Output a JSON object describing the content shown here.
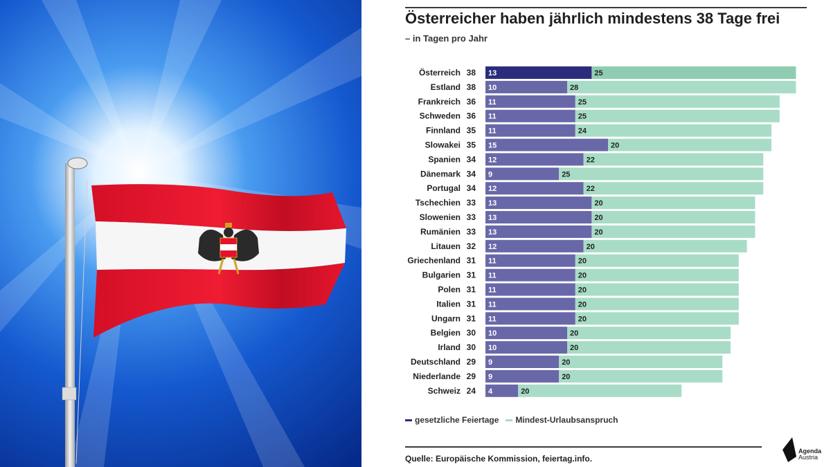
{
  "header": {
    "title": "Österreicher haben jährlich mindestens 38 Tage frei",
    "subtitle": "– in Tagen pro Jahr"
  },
  "legend": [
    {
      "label": "gesetzliche Feiertage",
      "color": "#2b2d7c"
    },
    {
      "label": "Mindest-Urlaubsanspruch",
      "color": "#a5dcc6"
    }
  ],
  "footer": {
    "source": "Quelle: Europäische Kommission, feiertag.info.",
    "logo_line1": "Agenda",
    "logo_line2": "Austria"
  },
  "colors": {
    "holidays_highlight": "#2b2d7c",
    "holidays": "#6868a8",
    "leave_highlight": "#8fcdb2",
    "leave": "#a8dcc6",
    "sky_center": "#dff0ff",
    "sky_edge": "#0a3ea8",
    "flag_red": "#e8112d"
  },
  "chart_data": {
    "type": "bar",
    "orientation": "horizontal",
    "stacked": true,
    "categories": [
      "Österreich",
      "Estland",
      "Frankreich",
      "Schweden",
      "Finnland",
      "Slowakei",
      "Spanien",
      "Dänemark",
      "Portugal",
      "Tschechien",
      "Slowenien",
      "Rumänien",
      "Litauen",
      "Griechenland",
      "Bulgarien",
      "Polen",
      "Italien",
      "Ungarn",
      "Belgien",
      "Irland",
      "Deutschland",
      "Niederlande",
      "Schweiz"
    ],
    "totals": [
      38,
      38,
      36,
      36,
      35,
      35,
      34,
      34,
      34,
      33,
      33,
      33,
      32,
      31,
      31,
      31,
      31,
      31,
      30,
      30,
      29,
      29,
      24
    ],
    "series": [
      {
        "name": "gesetzliche Feiertage",
        "values": [
          13,
          10,
          11,
          11,
          11,
          15,
          12,
          9,
          12,
          13,
          13,
          13,
          12,
          11,
          11,
          11,
          11,
          11,
          10,
          10,
          9,
          9,
          4
        ]
      },
      {
        "name": "Mindest-Urlaubsanspruch",
        "values": [
          25,
          28,
          25,
          25,
          24,
          20,
          22,
          25,
          22,
          20,
          20,
          20,
          20,
          20,
          20,
          20,
          20,
          20,
          20,
          20,
          20,
          20,
          20
        ]
      }
    ],
    "highlight_category": "Österreich",
    "xlim": [
      0,
      38
    ]
  }
}
